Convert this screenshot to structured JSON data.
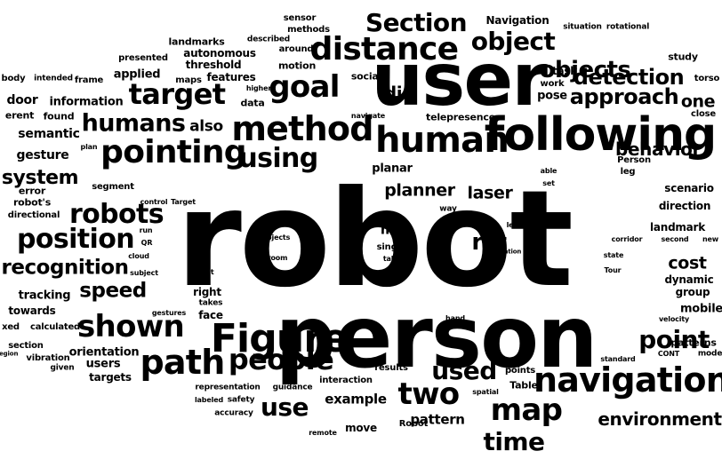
{
  "words": [
    "robot",
    "person",
    "user",
    "following",
    "Figure",
    "human",
    "method",
    "pointing",
    "distance",
    "path",
    "navigation",
    "people",
    "goal",
    "map",
    "using",
    "two",
    "shown",
    "robots",
    "position",
    "target",
    "humans",
    "object",
    "objects",
    "Section",
    "detection",
    "approach",
    "time",
    "used",
    "use",
    "point",
    "recognition",
    "speed",
    "environment",
    "system",
    "behavior",
    "di",
    "planner",
    "laser",
    "cost",
    "also",
    "one",
    "rst",
    "may",
    "example",
    "pattern",
    "semantic",
    "gesture",
    "door",
    "information",
    "features",
    "threshold",
    "autonomous",
    "landmarks",
    "sensor",
    "methods",
    "around",
    "motion",
    "data",
    "Navigation",
    "work",
    "situation",
    "rotational",
    "task",
    "study",
    "torso",
    "pose",
    "social",
    "applied",
    "body",
    "intended",
    "frame",
    "presented",
    "maps",
    "described",
    "higher",
    "erent",
    "found",
    "navigate",
    "telepresence",
    "close",
    "plan",
    "Person",
    "leg",
    "able",
    "set",
    "way",
    "planar",
    "robot's",
    "error",
    "segment",
    "control",
    "Target",
    "scenario",
    "direction",
    "landmark",
    "directional",
    "run",
    "QR",
    "label",
    "left",
    "location",
    "corridor",
    "second",
    "new",
    "state",
    "Tour",
    "dynamic",
    "group",
    "mobile",
    "cloud",
    "subject",
    "belt",
    "right",
    "takes",
    "face",
    "subjects",
    "room",
    "single",
    "table",
    "tracking",
    "towards",
    "xed",
    "calculated",
    "section",
    "vibration",
    "region",
    "given",
    "gestures",
    "orientation",
    "users",
    "targets",
    "hand",
    "results",
    "points",
    "standard",
    "Table",
    "CONT",
    "velocity",
    "patterns",
    "model",
    "representation",
    "guidance",
    "labeled",
    "safety",
    "accuracy",
    "interaction",
    "spatial",
    "remote",
    "move",
    "Robot"
  ]
}
